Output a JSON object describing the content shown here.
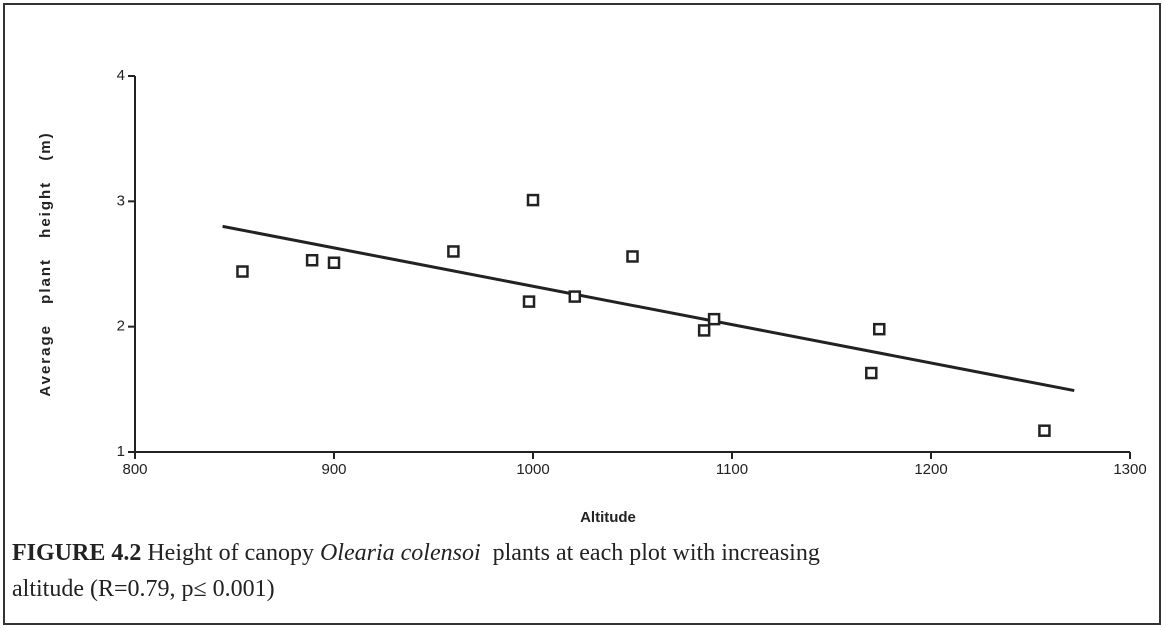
{
  "chart_data": {
    "type": "scatter",
    "x_label": "Altitude",
    "y_label": "Average plant height (m)",
    "x": [
      854,
      889,
      900,
      960,
      1000,
      998,
      1021,
      1050,
      1086,
      1091,
      1174,
      1170,
      1257
    ],
    "values": [
      2.44,
      2.53,
      2.51,
      2.6,
      3.01,
      2.2,
      2.24,
      2.56,
      1.97,
      2.06,
      1.98,
      1.63,
      1.17
    ],
    "color": "#222222",
    "trendline": {
      "x": [
        844,
        1272
      ],
      "y": [
        2.8,
        1.49
      ]
    },
    "xlim": [
      800,
      1300
    ],
    "xticks": [
      800,
      900,
      1000,
      1100,
      1200,
      1300
    ],
    "ylim": [
      1,
      4
    ],
    "yticks": [
      1,
      2,
      3,
      4
    ],
    "grid": false
  },
  "caption": {
    "label": "FIGURE 4.2",
    "text1": "Height of canopy",
    "species": "Olearia colensoi",
    "text2": "plants at each plot with increasing",
    "text3": "altitude (R=0.79, p≤ 0.001)"
  }
}
